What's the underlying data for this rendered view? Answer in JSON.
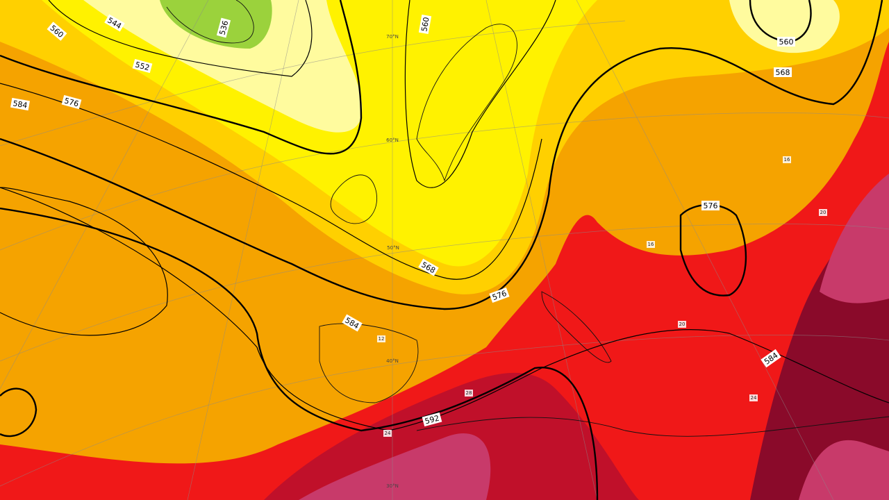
{
  "map": {
    "contour_labels": [
      "544",
      "552",
      "536",
      "560",
      "560",
      "560",
      "568",
      "568",
      "576",
      "576",
      "576",
      "584",
      "584",
      "584",
      "592"
    ],
    "latitude_labels": [
      "70°N",
      "60°N",
      "50°N",
      "40°N",
      "30°N"
    ],
    "temperature_labels": [
      "16",
      "20",
      "12",
      "16",
      "20",
      "24",
      "24",
      "28"
    ]
  }
}
